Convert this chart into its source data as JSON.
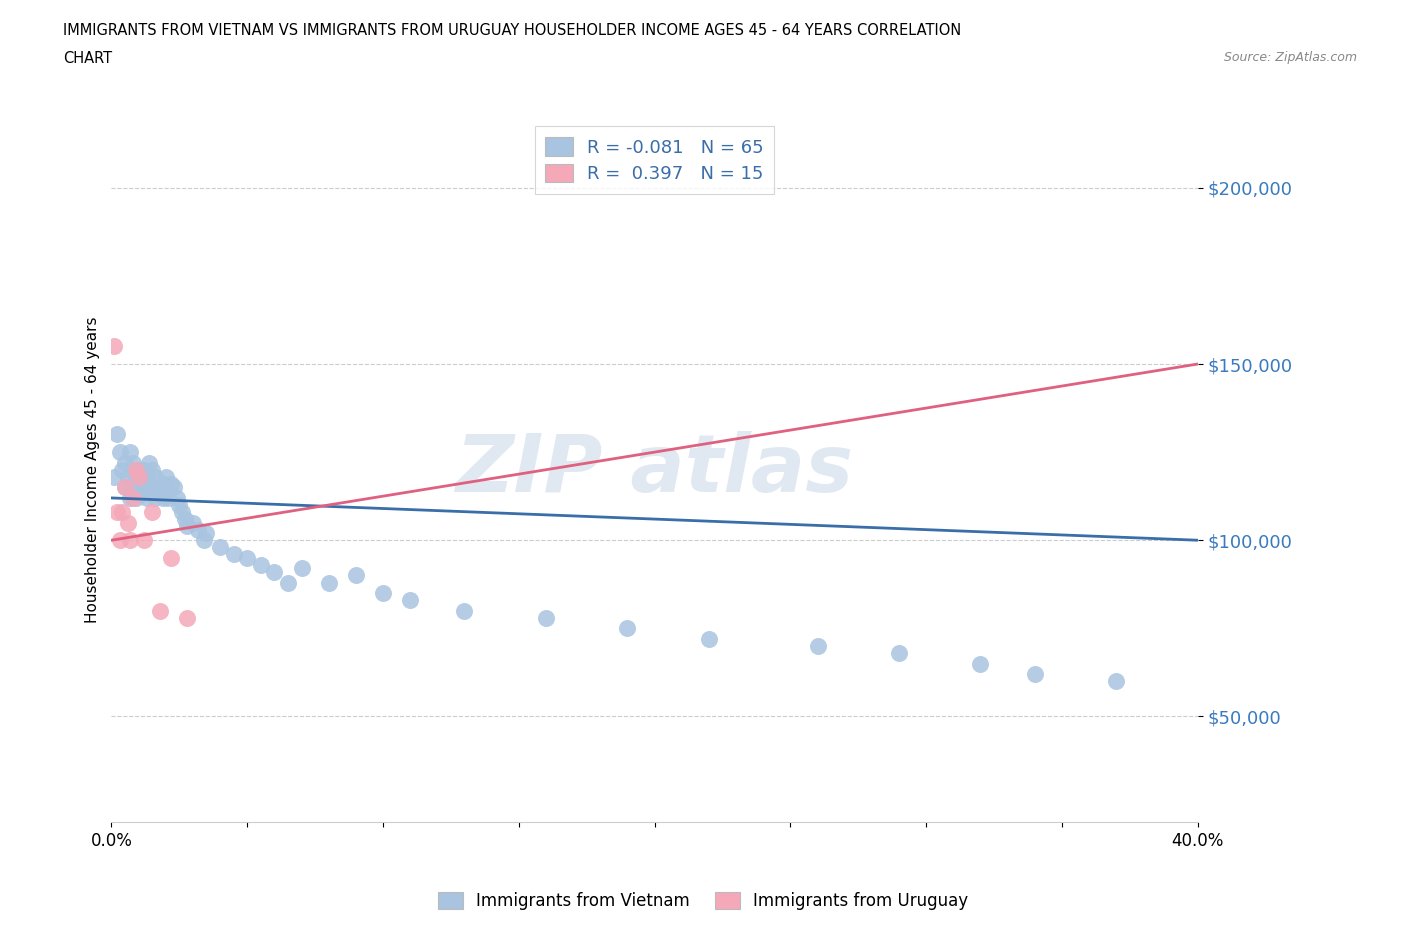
{
  "title_line1": "IMMIGRANTS FROM VIETNAM VS IMMIGRANTS FROM URUGUAY HOUSEHOLDER INCOME AGES 45 - 64 YEARS CORRELATION",
  "title_line2": "CHART",
  "source": "Source: ZipAtlas.com",
  "ylabel": "Householder Income Ages 45 - 64 years",
  "xlim": [
    0.0,
    0.4
  ],
  "ylim": [
    20000,
    220000
  ],
  "yticks": [
    50000,
    100000,
    150000,
    200000
  ],
  "ytick_labels": [
    "$50,000",
    "$100,000",
    "$150,000",
    "$200,000"
  ],
  "xticks": [
    0.0,
    0.05,
    0.1,
    0.15,
    0.2,
    0.25,
    0.3,
    0.35,
    0.4
  ],
  "xtick_labels": [
    "0.0%",
    "",
    "",
    "",
    "",
    "",
    "",
    "",
    "40.0%"
  ],
  "R_vietnam": -0.081,
  "N_vietnam": 65,
  "R_uruguay": 0.397,
  "N_uruguay": 15,
  "vietnam_color": "#a8c4e0",
  "uruguay_color": "#f4a8b8",
  "trend_vietnam_color": "#3a6ea8",
  "trend_uruguay_color": "#e06080",
  "vietnam_x": [
    0.001,
    0.002,
    0.003,
    0.004,
    0.005,
    0.005,
    0.006,
    0.007,
    0.007,
    0.008,
    0.008,
    0.009,
    0.009,
    0.01,
    0.01,
    0.011,
    0.011,
    0.012,
    0.012,
    0.013,
    0.013,
    0.014,
    0.014,
    0.015,
    0.015,
    0.016,
    0.016,
    0.017,
    0.018,
    0.019,
    0.019,
    0.02,
    0.02,
    0.021,
    0.022,
    0.023,
    0.024,
    0.025,
    0.026,
    0.027,
    0.028,
    0.03,
    0.032,
    0.034,
    0.035,
    0.04,
    0.045,
    0.05,
    0.055,
    0.06,
    0.065,
    0.07,
    0.08,
    0.09,
    0.1,
    0.11,
    0.13,
    0.16,
    0.19,
    0.22,
    0.26,
    0.29,
    0.32,
    0.34,
    0.37
  ],
  "vietnam_y": [
    118000,
    130000,
    125000,
    120000,
    115000,
    122000,
    118000,
    112000,
    125000,
    115000,
    122000,
    118000,
    112000,
    120000,
    115000,
    118000,
    113000,
    115000,
    120000,
    118000,
    112000,
    116000,
    122000,
    115000,
    120000,
    112000,
    118000,
    115000,
    113000,
    116000,
    112000,
    118000,
    115000,
    112000,
    116000,
    115000,
    112000,
    110000,
    108000,
    106000,
    104000,
    105000,
    103000,
    100000,
    102000,
    98000,
    96000,
    95000,
    93000,
    91000,
    88000,
    92000,
    88000,
    90000,
    85000,
    83000,
    80000,
    78000,
    75000,
    72000,
    70000,
    68000,
    65000,
    62000,
    60000
  ],
  "uruguay_x": [
    0.001,
    0.002,
    0.003,
    0.004,
    0.005,
    0.006,
    0.007,
    0.008,
    0.009,
    0.01,
    0.012,
    0.015,
    0.018,
    0.022,
    0.028
  ],
  "uruguay_y": [
    155000,
    108000,
    100000,
    108000,
    115000,
    105000,
    100000,
    112000,
    120000,
    118000,
    100000,
    108000,
    80000,
    95000,
    78000
  ],
  "vietnam_trend_y0": 112000,
  "vietnam_trend_y1": 100000,
  "uruguay_trend_y0": 100000,
  "uruguay_trend_y1": 150000
}
